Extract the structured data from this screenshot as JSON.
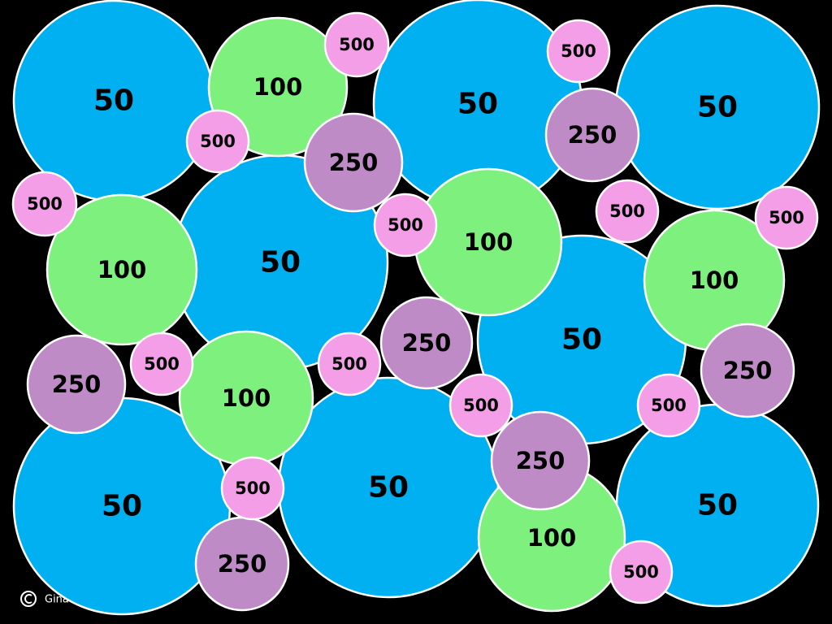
{
  "circles": [
    "50",
    "50",
    "50",
    "50",
    "50",
    "50",
    "50",
    "50",
    "100",
    "100",
    "100",
    "100",
    "100",
    "100",
    "250",
    "250",
    "250",
    "250",
    "250",
    "250",
    "250",
    "500",
    "500",
    "500",
    "500",
    "500",
    "500",
    "500",
    "500",
    "500",
    "500",
    "500",
    "500",
    "500"
  ],
  "footer": "Gina W"
}
